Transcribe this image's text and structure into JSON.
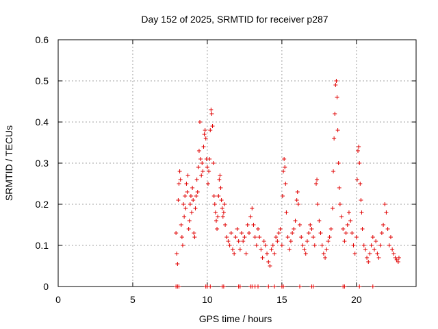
{
  "chart_data": {
    "type": "scatter",
    "title": "Day 152 of 2025, SRMTID for receiver p287",
    "xlabel": "GPS time / hours",
    "ylabel": "SRMTID / TECUs",
    "xlim": [
      0,
      24
    ],
    "ylim": [
      0,
      0.6
    ],
    "xticks": [
      0,
      5,
      10,
      15,
      20
    ],
    "yticks": [
      0,
      0.1,
      0.2,
      0.3,
      0.4,
      0.5,
      0.6
    ],
    "xtick_labels": [
      "0",
      "5",
      "10",
      "15",
      "20"
    ],
    "ytick_labels": [
      "0",
      "0.1",
      "0.2",
      "0.3",
      "0.4",
      "0.5",
      "0.6"
    ],
    "grid": true,
    "marker": "plus",
    "color": "#e00000",
    "series": [
      {
        "name": "SRMTID",
        "points": [
          [
            7.9,
            0.13
          ],
          [
            7.95,
            0.08
          ],
          [
            8.0,
            0.055
          ],
          [
            8.05,
            0.21
          ],
          [
            8.1,
            0.25
          ],
          [
            8.15,
            0.28
          ],
          [
            8.2,
            0.26
          ],
          [
            8.25,
            0.15
          ],
          [
            8.3,
            0.12
          ],
          [
            8.35,
            0.1
          ],
          [
            8.4,
            0.2
          ],
          [
            8.45,
            0.17
          ],
          [
            8.5,
            0.22
          ],
          [
            8.55,
            0.19
          ],
          [
            8.6,
            0.25
          ],
          [
            8.65,
            0.23
          ],
          [
            8.7,
            0.27
          ],
          [
            8.75,
            0.14
          ],
          [
            8.8,
            0.16
          ],
          [
            8.85,
            0.2
          ],
          [
            8.9,
            0.22
          ],
          [
            8.95,
            0.18
          ],
          [
            9.0,
            0.24
          ],
          [
            9.05,
            0.21
          ],
          [
            9.1,
            0.13
          ],
          [
            9.15,
            0.12
          ],
          [
            9.2,
            0.19
          ],
          [
            9.25,
            0.22
          ],
          [
            9.3,
            0.26
          ],
          [
            9.35,
            0.23
          ],
          [
            9.4,
            0.29
          ],
          [
            9.45,
            0.33
          ],
          [
            9.5,
            0.4
          ],
          [
            9.55,
            0.31
          ],
          [
            9.6,
            0.27
          ],
          [
            9.65,
            0.3
          ],
          [
            9.7,
            0.28
          ],
          [
            9.75,
            0.34
          ],
          [
            9.8,
            0.37
          ],
          [
            9.85,
            0.38
          ],
          [
            9.9,
            0.36
          ],
          [
            9.95,
            0.31
          ],
          [
            10.0,
            0.29
          ],
          [
            10.05,
            0.25
          ],
          [
            10.1,
            0.28
          ],
          [
            10.15,
            0.31
          ],
          [
            10.2,
            0.38
          ],
          [
            10.25,
            0.43
          ],
          [
            10.3,
            0.42
          ],
          [
            10.35,
            0.39
          ],
          [
            10.4,
            0.3
          ],
          [
            10.45,
            0.22
          ],
          [
            10.5,
            0.2
          ],
          [
            10.55,
            0.18
          ],
          [
            10.6,
            0.16
          ],
          [
            10.65,
            0.14
          ],
          [
            10.7,
            0.17
          ],
          [
            10.75,
            0.22
          ],
          [
            10.8,
            0.26
          ],
          [
            10.85,
            0.27
          ],
          [
            10.9,
            0.24
          ],
          [
            10.95,
            0.21
          ],
          [
            11.0,
            0.19
          ],
          [
            11.05,
            0.17
          ],
          [
            11.1,
            0.18
          ],
          [
            11.15,
            0.2
          ],
          [
            11.2,
            0.15
          ],
          [
            11.3,
            0.12
          ],
          [
            11.4,
            0.11
          ],
          [
            11.5,
            0.1
          ],
          [
            11.6,
            0.13
          ],
          [
            11.7,
            0.09
          ],
          [
            11.8,
            0.08
          ],
          [
            11.9,
            0.12
          ],
          [
            12.0,
            0.14
          ],
          [
            12.1,
            0.11
          ],
          [
            12.2,
            0.09
          ],
          [
            12.3,
            0.13
          ],
          [
            12.4,
            0.11
          ],
          [
            12.5,
            0.12
          ],
          [
            12.6,
            0.08
          ],
          [
            12.7,
            0.15
          ],
          [
            12.8,
            0.13
          ],
          [
            12.9,
            0.17
          ],
          [
            13.0,
            0.19
          ],
          [
            13.1,
            0.15
          ],
          [
            13.2,
            0.12
          ],
          [
            13.3,
            0.1
          ],
          [
            13.4,
            0.14
          ],
          [
            13.5,
            0.12
          ],
          [
            13.6,
            0.09
          ],
          [
            13.7,
            0.07
          ],
          [
            13.8,
            0.11
          ],
          [
            13.9,
            0.1
          ],
          [
            14.0,
            0.08
          ],
          [
            14.1,
            0.06
          ],
          [
            14.2,
            0.05
          ],
          [
            14.3,
            0.09
          ],
          [
            14.4,
            0.1
          ],
          [
            14.5,
            0.08
          ],
          [
            14.6,
            0.12
          ],
          [
            14.7,
            0.11
          ],
          [
            14.8,
            0.13
          ],
          [
            14.9,
            0.14
          ],
          [
            15.0,
            0.1
          ],
          [
            15.05,
            0.22
          ],
          [
            15.1,
            0.28
          ],
          [
            15.15,
            0.31
          ],
          [
            15.2,
            0.29
          ],
          [
            15.25,
            0.25
          ],
          [
            15.3,
            0.18
          ],
          [
            15.4,
            0.12
          ],
          [
            15.5,
            0.09
          ],
          [
            15.6,
            0.11
          ],
          [
            15.7,
            0.13
          ],
          [
            15.8,
            0.14
          ],
          [
            15.9,
            0.16
          ],
          [
            16.0,
            0.21
          ],
          [
            16.05,
            0.23
          ],
          [
            16.1,
            0.2
          ],
          [
            16.2,
            0.15
          ],
          [
            16.3,
            0.12
          ],
          [
            16.4,
            0.1
          ],
          [
            16.5,
            0.09
          ],
          [
            16.6,
            0.08
          ],
          [
            16.7,
            0.11
          ],
          [
            16.8,
            0.13
          ],
          [
            16.9,
            0.15
          ],
          [
            17.0,
            0.14
          ],
          [
            17.1,
            0.12
          ],
          [
            17.2,
            0.1
          ],
          [
            17.3,
            0.25
          ],
          [
            17.35,
            0.26
          ],
          [
            17.4,
            0.2
          ],
          [
            17.5,
            0.16
          ],
          [
            17.6,
            0.13
          ],
          [
            17.7,
            0.1
          ],
          [
            17.8,
            0.08
          ],
          [
            17.9,
            0.07
          ],
          [
            18.0,
            0.09
          ],
          [
            18.1,
            0.11
          ],
          [
            18.2,
            0.12
          ],
          [
            18.3,
            0.14
          ],
          [
            18.4,
            0.19
          ],
          [
            18.45,
            0.28
          ],
          [
            18.5,
            0.36
          ],
          [
            18.55,
            0.42
          ],
          [
            18.6,
            0.49
          ],
          [
            18.65,
            0.5
          ],
          [
            18.7,
            0.46
          ],
          [
            18.75,
            0.38
          ],
          [
            18.8,
            0.3
          ],
          [
            18.85,
            0.24
          ],
          [
            18.9,
            0.2
          ],
          [
            19.0,
            0.17
          ],
          [
            19.1,
            0.14
          ],
          [
            19.2,
            0.11
          ],
          [
            19.3,
            0.13
          ],
          [
            19.4,
            0.15
          ],
          [
            19.5,
            0.18
          ],
          [
            19.6,
            0.16
          ],
          [
            19.7,
            0.13
          ],
          [
            19.8,
            0.1
          ],
          [
            19.9,
            0.08
          ],
          [
            20.0,
            0.12
          ],
          [
            20.05,
            0.26
          ],
          [
            20.1,
            0.33
          ],
          [
            20.15,
            0.34
          ],
          [
            20.2,
            0.3
          ],
          [
            20.25,
            0.25
          ],
          [
            20.3,
            0.21
          ],
          [
            20.35,
            0.18
          ],
          [
            20.4,
            0.14
          ],
          [
            20.5,
            0.1
          ],
          [
            20.6,
            0.09
          ],
          [
            20.7,
            0.07
          ],
          [
            20.8,
            0.06
          ],
          [
            20.9,
            0.08
          ],
          [
            21.0,
            0.1
          ],
          [
            21.1,
            0.12
          ],
          [
            21.2,
            0.09
          ],
          [
            21.3,
            0.11
          ],
          [
            21.4,
            0.08
          ],
          [
            21.5,
            0.07
          ],
          [
            21.6,
            0.1
          ],
          [
            21.7,
            0.13
          ],
          [
            21.8,
            0.15
          ],
          [
            21.9,
            0.2
          ],
          [
            22.0,
            0.18
          ],
          [
            22.1,
            0.14
          ],
          [
            22.2,
            0.1
          ],
          [
            22.3,
            0.12
          ],
          [
            22.4,
            0.09
          ],
          [
            22.5,
            0.08
          ],
          [
            22.6,
            0.07
          ],
          [
            22.7,
            0.065
          ],
          [
            22.8,
            0.06
          ],
          [
            22.85,
            0.07
          ]
        ]
      }
    ],
    "zero_points_x": [
      7.9,
      8.0,
      8.1,
      9.9,
      10.0,
      10.2,
      11.0,
      11.1,
      12.1,
      12.2,
      12.9,
      13.0,
      13.2,
      13.4,
      14.1,
      14.5,
      15.0,
      15.1,
      16.2,
      17.0,
      17.1,
      19.1,
      19.2,
      20.2,
      21.1
    ]
  }
}
